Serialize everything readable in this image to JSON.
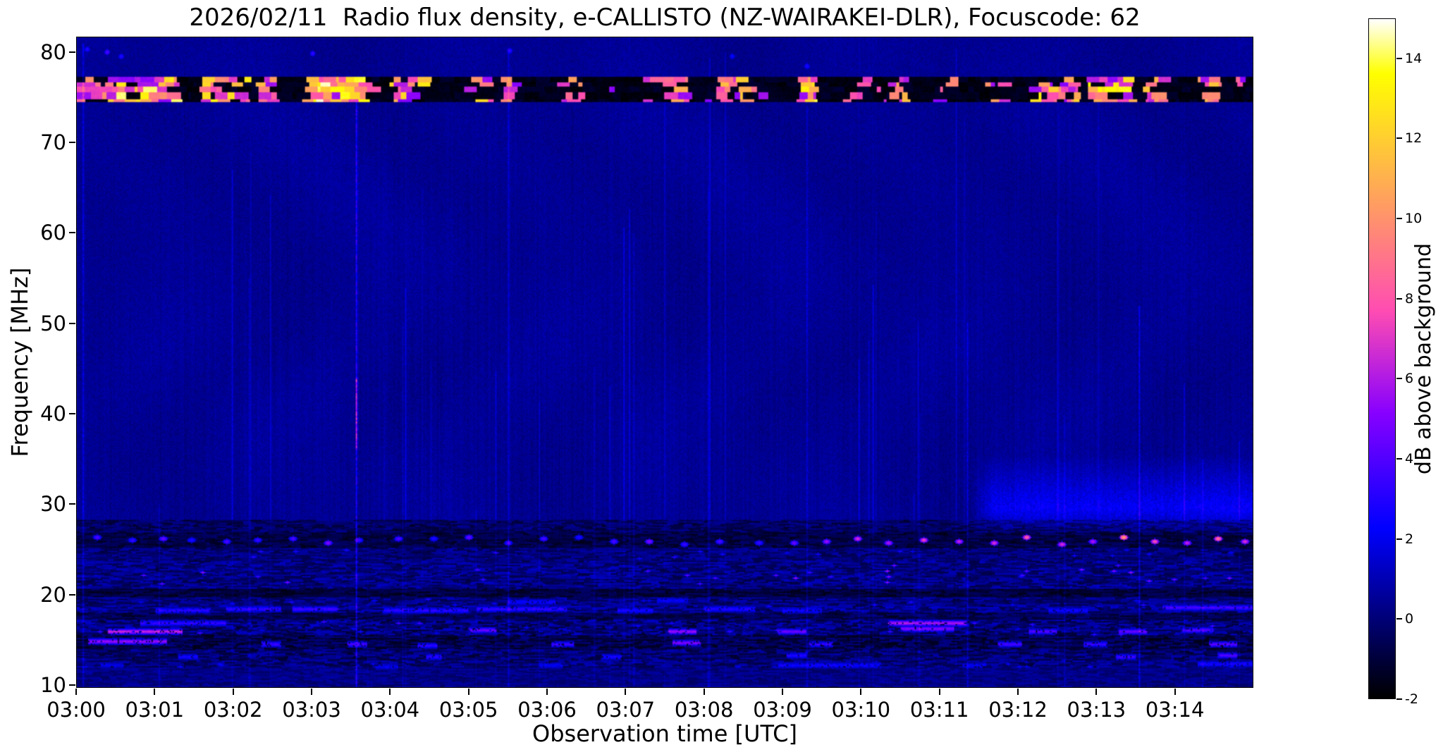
{
  "figure": {
    "date": "2026/02/11",
    "instrument": "e-CALLISTO",
    "station": "NZ-WAIRAKEI-DLR",
    "focuscode": "62"
  },
  "chart_data": {
    "type": "heatmap",
    "title": "2026/02/11  Radio flux density, e-CALLISTO (NZ-WAIRAKEI-DLR), Focuscode: 62",
    "xlabel": "Observation time [UTC]",
    "ylabel": "Frequency [MHz]",
    "colorbar_label": "dB above background",
    "colormap": "gnuplot2",
    "clim": [
      -2,
      15
    ],
    "colorbar_ticks": [
      -2,
      0,
      2,
      4,
      6,
      8,
      10,
      12,
      14
    ],
    "x_ticks": [
      "03:00",
      "03:01",
      "03:02",
      "03:03",
      "03:04",
      "03:05",
      "03:06",
      "03:07",
      "03:08",
      "03:09",
      "03:10",
      "03:11",
      "03:12",
      "03:13",
      "03:14"
    ],
    "x_range_minutes": [
      0,
      15
    ],
    "y_ticks": [
      10,
      20,
      30,
      40,
      50,
      60,
      70,
      80
    ],
    "ylim": [
      9.7,
      81.7
    ],
    "grid": false,
    "legend": "colorbar-right",
    "background_level_db": 0.45,
    "features": {
      "rfi_band": {
        "f": [
          74.55,
          77.35
        ],
        "description": "strong broadcast RFI band, alternating black dropouts and saturated white/yellow bursts",
        "bursts": [
          [
            0.0,
            0.3,
            0.55
          ],
          [
            0.35,
            1.3,
            0.95
          ],
          [
            1.6,
            2.2,
            0.8
          ],
          [
            2.3,
            2.55,
            0.6
          ],
          [
            2.9,
            3.7,
            1.0
          ],
          [
            4.0,
            4.45,
            0.75
          ],
          [
            5.0,
            5.3,
            0.6
          ],
          [
            5.45,
            5.62,
            0.85
          ],
          [
            6.2,
            6.5,
            0.3
          ],
          [
            7.0,
            7.4,
            0.35
          ],
          [
            7.5,
            7.8,
            0.4
          ],
          [
            8.2,
            8.65,
            0.55
          ],
          [
            9.15,
            9.45,
            0.85
          ],
          [
            9.8,
            10.1,
            0.3
          ],
          [
            10.3,
            10.6,
            0.45
          ],
          [
            11.0,
            11.3,
            0.3
          ],
          [
            11.6,
            11.9,
            0.4
          ],
          [
            12.2,
            12.8,
            0.75
          ],
          [
            12.9,
            13.5,
            0.8
          ],
          [
            13.6,
            13.9,
            0.5
          ],
          [
            14.3,
            14.6,
            0.6
          ],
          [
            14.8,
            15.0,
            0.35
          ]
        ]
      },
      "bands": [
        {
          "f": [
            26.8,
            28.2
          ],
          "level": -0.35,
          "noise": 0.9,
          "seg": 4
        },
        {
          "f": [
            25.2,
            26.8
          ],
          "level": -0.85,
          "noise": 0.7,
          "seg": 4
        },
        {
          "f": [
            23.8,
            25.2
          ],
          "level": 0.0,
          "noise": 0.9,
          "seg": 4
        },
        {
          "f": [
            20.6,
            23.8
          ],
          "level": 0.15,
          "noise": 1.1,
          "seg": 4
        },
        {
          "f": [
            19.6,
            20.6
          ],
          "level": -0.95,
          "noise": 0.7,
          "seg": 5
        },
        {
          "f": [
            18.7,
            19.6
          ],
          "level": 0.1,
          "noise": 1.0,
          "seg": 4
        },
        {
          "f": [
            17.9,
            18.7
          ],
          "level": 0.3,
          "noise": 1.2,
          "seg": 4
        },
        {
          "f": [
            17.2,
            17.9
          ],
          "level": -0.6,
          "noise": 0.8,
          "seg": 5
        },
        {
          "f": [
            15.4,
            17.2
          ],
          "level": 0.05,
          "noise": 1.3,
          "seg": 3
        },
        {
          "f": [
            13.9,
            15.4
          ],
          "level": -0.65,
          "noise": 1.0,
          "seg": 4
        },
        {
          "f": [
            12.7,
            13.9
          ],
          "level": -0.15,
          "noise": 1.1,
          "seg": 4
        },
        {
          "f": [
            11.9,
            12.7
          ],
          "level": 0.05,
          "noise": 1.1,
          "seg": 4
        },
        {
          "f": [
            9.7,
            11.9
          ],
          "level": 0.2,
          "noise": 0.6,
          "seg": 4
        }
      ],
      "haze": {
        "t": [
          11.4,
          15
        ],
        "f": [
          26.5,
          35.5
        ],
        "peak_f": 29.5,
        "add": 1.7,
        "description": "enhanced blue emission 27-35 MHz after 03:11.4 until end"
      },
      "vlines": [
        [
          3.55,
          9.7,
          74.5,
          2.3
        ],
        [
          3.55,
          36,
          44,
          3.2
        ],
        [
          0.07,
          9.7,
          81,
          1.2
        ],
        [
          5.5,
          9.7,
          80.5,
          0.9
        ],
        [
          8.05,
          9.7,
          65,
          0.8
        ],
        [
          9.3,
          9.7,
          74,
          0.9
        ],
        [
          2.2,
          9.7,
          55,
          0.6
        ],
        [
          6.6,
          9.7,
          45,
          0.5
        ],
        [
          10.75,
          9.7,
          40,
          0.6
        ],
        [
          11.35,
          9.7,
          50,
          1.0
        ],
        [
          12.6,
          9.7,
          40,
          0.6
        ],
        [
          13.55,
          9.7,
          52,
          1.4
        ],
        [
          14.35,
          9.7,
          35,
          0.7
        ],
        [
          1.05,
          9.7,
          30,
          0.7
        ],
        [
          4.15,
          9.7,
          50,
          0.6
        ],
        [
          7.1,
          9.7,
          60,
          0.6
        ]
      ],
      "streaks": [
        [
          0.15,
          1.15,
          14.8,
          5.5
        ],
        [
          0.4,
          1.35,
          16.0,
          6.5
        ],
        [
          0.8,
          1.9,
          16.9,
          3.4
        ],
        [
          1.0,
          1.7,
          18.3,
          3.2
        ],
        [
          1.9,
          2.6,
          18.4,
          3.3
        ],
        [
          2.75,
          3.35,
          18.45,
          3.6
        ],
        [
          3.9,
          5.0,
          18.3,
          3.2
        ],
        [
          5.1,
          6.25,
          18.35,
          3.4
        ],
        [
          6.9,
          7.35,
          18.3,
          2.8
        ],
        [
          8.0,
          8.65,
          18.4,
          3.0
        ],
        [
          9.0,
          9.5,
          18.3,
          2.6
        ],
        [
          12.4,
          12.9,
          18.3,
          2.5
        ],
        [
          13.85,
          15.0,
          18.6,
          3.8
        ],
        [
          5.5,
          6.1,
          19.25,
          2.5
        ],
        [
          7.4,
          7.8,
          19.3,
          2.3
        ],
        [
          10.35,
          11.35,
          16.8,
          6.0
        ],
        [
          10.5,
          11.2,
          16.3,
          5.0
        ],
        [
          5.0,
          5.35,
          16.1,
          4.5
        ],
        [
          7.55,
          7.9,
          16.0,
          5.5
        ],
        [
          8.95,
          9.3,
          15.9,
          4.5
        ],
        [
          12.15,
          12.5,
          16.0,
          4.0
        ],
        [
          13.3,
          13.65,
          15.9,
          4.5
        ],
        [
          14.1,
          14.5,
          16.1,
          4.0
        ],
        [
          2.35,
          2.6,
          14.5,
          3.5
        ],
        [
          3.45,
          3.7,
          14.6,
          3.8
        ],
        [
          4.35,
          4.6,
          14.4,
          3.2
        ],
        [
          6.05,
          6.35,
          14.5,
          3.5
        ],
        [
          7.6,
          7.95,
          14.7,
          5.0
        ],
        [
          9.35,
          9.65,
          14.5,
          3.5
        ],
        [
          11.75,
          12.05,
          14.6,
          3.8
        ],
        [
          12.85,
          13.15,
          14.5,
          3.5
        ],
        [
          14.45,
          14.8,
          14.5,
          4.2
        ],
        [
          1.3,
          1.55,
          13.1,
          2.6
        ],
        [
          4.45,
          4.65,
          13.2,
          3.2
        ],
        [
          6.7,
          6.95,
          13.2,
          2.8
        ],
        [
          9.05,
          9.3,
          13.3,
          3.0
        ],
        [
          13.25,
          13.5,
          13.2,
          3.6
        ],
        [
          14.55,
          14.8,
          13.3,
          4.0
        ],
        [
          0.3,
          0.6,
          12.2,
          2.0
        ],
        [
          3.8,
          4.1,
          12.1,
          2.0
        ],
        [
          5.9,
          6.2,
          12.2,
          2.2
        ],
        [
          8.95,
          10.25,
          12.2,
          2.6
        ],
        [
          11.3,
          11.6,
          12.2,
          2.2
        ],
        [
          14.3,
          15.0,
          12.3,
          2.8
        ]
      ],
      "f26_blobs": [
        [
          0.25,
          4
        ],
        [
          0.7,
          3.5
        ],
        [
          1.1,
          4.5
        ],
        [
          1.45,
          3
        ],
        [
          1.9,
          4
        ],
        [
          2.3,
          3.5
        ],
        [
          2.75,
          4
        ],
        [
          3.2,
          5
        ],
        [
          3.6,
          3.5
        ],
        [
          4.1,
          4
        ],
        [
          4.55,
          3
        ],
        [
          5.0,
          4.5
        ],
        [
          5.5,
          3.5
        ],
        [
          5.95,
          4
        ],
        [
          6.4,
          3
        ],
        [
          6.85,
          4
        ],
        [
          7.3,
          5
        ],
        [
          7.75,
          3.5
        ],
        [
          8.2,
          4
        ],
        [
          8.7,
          3.5
        ],
        [
          9.15,
          4.5
        ],
        [
          9.55,
          5.5
        ],
        [
          9.95,
          7
        ],
        [
          10.35,
          6
        ],
        [
          10.8,
          7.5
        ],
        [
          11.25,
          6.5
        ],
        [
          11.7,
          7
        ],
        [
          12.1,
          8.5
        ],
        [
          12.55,
          7
        ],
        [
          12.95,
          6
        ],
        [
          13.35,
          10.5
        ],
        [
          13.75,
          8
        ],
        [
          14.15,
          6.5
        ],
        [
          14.55,
          9
        ],
        [
          14.9,
          7
        ]
      ],
      "top_blobs": [
        [
          0.12,
          80.5,
          3
        ],
        [
          0.38,
          80.2,
          4
        ],
        [
          0.55,
          79.7,
          3
        ],
        [
          3.0,
          80.0,
          3.5
        ],
        [
          5.52,
          80.3,
          3
        ],
        [
          8.35,
          79.6,
          2.5
        ],
        [
          9.3,
          78.6,
          3
        ]
      ],
      "speckle_fields": [
        {
          "t": [
            0.5,
            15
          ],
          "f": [
            21.2,
            23.4
          ],
          "count": 30,
          "level": [
            3,
            6
          ]
        },
        {
          "t": [
            0,
            15
          ],
          "f": [
            23.9,
            25.1
          ],
          "count": 18,
          "level": [
            2,
            3.5
          ]
        },
        {
          "t": [
            0,
            15
          ],
          "f": [
            18.8,
            19.5
          ],
          "count": 16,
          "level": [
            2,
            3.2
          ]
        },
        {
          "t": [
            0,
            15
          ],
          "f": [
            12.0,
            12.5
          ],
          "count": 14,
          "level": [
            1.8,
            2.8
          ]
        },
        {
          "t": [
            0,
            15
          ],
          "f": [
            15.5,
            17.1
          ],
          "count": 22,
          "level": [
            2,
            4
          ]
        }
      ]
    }
  }
}
